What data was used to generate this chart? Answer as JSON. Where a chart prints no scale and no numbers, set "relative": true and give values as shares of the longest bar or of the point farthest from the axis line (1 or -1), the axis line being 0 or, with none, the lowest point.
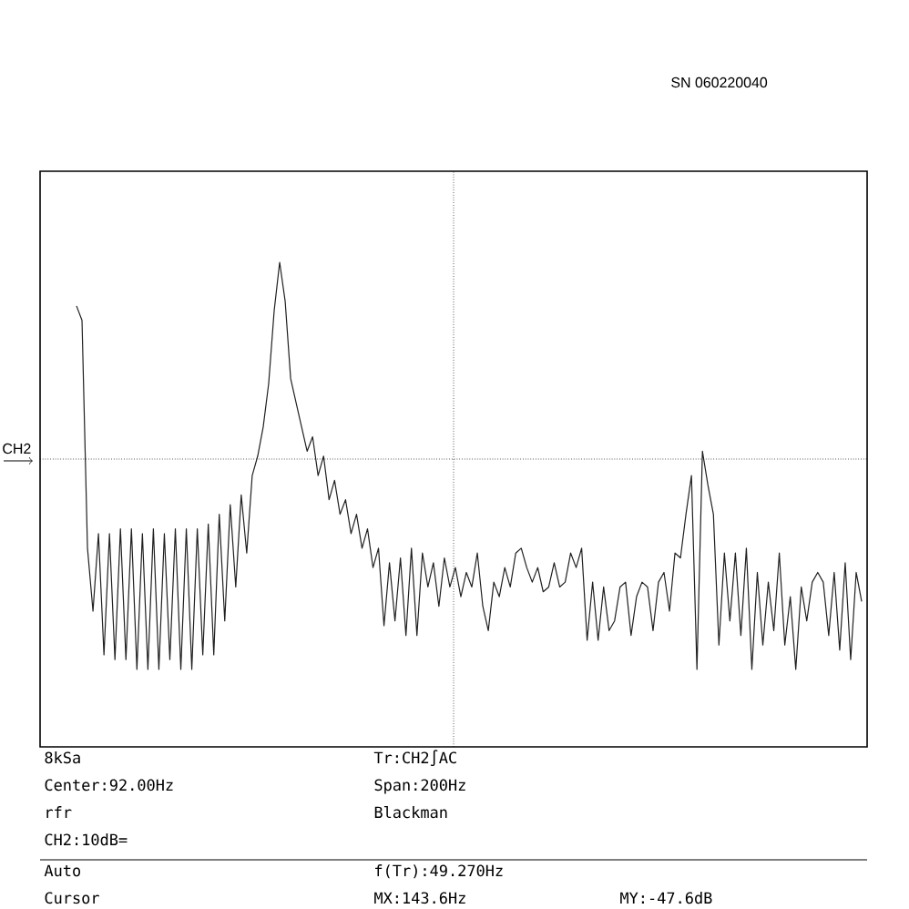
{
  "chart_data": {
    "type": "line",
    "relative": true,
    "grid": true,
    "color": "#202020",
    "categories": [
      null,
      null,
      null,
      null,
      null,
      null,
      null,
      null,
      null,
      null,
      null,
      null,
      null,
      null,
      null,
      null,
      null,
      null,
      null,
      null,
      null,
      null,
      null,
      null,
      null,
      null,
      null,
      null,
      null,
      null,
      null,
      null,
      null,
      null,
      null,
      null,
      null,
      null,
      null,
      null,
      null,
      null,
      null,
      null,
      null,
      null,
      null,
      null,
      null,
      null,
      null,
      null,
      null,
      null,
      null,
      null,
      null,
      null,
      null,
      null,
      null,
      null,
      null,
      null,
      null,
      null,
      null,
      null,
      null,
      null,
      null,
      null,
      null,
      null,
      null,
      null,
      null,
      null,
      null,
      null,
      null,
      null,
      null,
      null,
      null,
      null,
      null,
      null,
      null,
      null,
      null,
      null,
      null,
      null,
      null,
      null,
      null,
      null,
      null,
      null,
      null,
      null,
      null,
      null,
      null,
      null,
      null,
      null,
      null,
      null,
      null,
      null,
      null,
      null,
      null,
      null,
      null,
      null,
      null,
      null,
      null,
      null,
      null,
      null,
      null,
      null,
      null,
      null,
      null,
      null,
      null,
      null,
      null,
      null,
      null,
      null,
      null,
      null,
      null,
      null,
      null,
      null,
      null,
      null
    ],
    "values": [
      0.91,
      0.88,
      0.41,
      0.28,
      0.44,
      0.19,
      0.44,
      0.18,
      0.45,
      0.18,
      0.45,
      0.16,
      0.44,
      0.16,
      0.45,
      0.16,
      0.44,
      0.18,
      0.45,
      0.16,
      0.45,
      0.16,
      0.45,
      0.19,
      0.46,
      0.19,
      0.48,
      0.26,
      0.5,
      0.33,
      0.52,
      0.4,
      0.56,
      0.6,
      0.66,
      0.75,
      0.9,
      1.0,
      0.92,
      0.76,
      0.71,
      0.66,
      0.61,
      0.64,
      0.56,
      0.6,
      0.51,
      0.55,
      0.48,
      0.51,
      0.44,
      0.48,
      0.41,
      0.45,
      0.37,
      0.41,
      0.25,
      0.38,
      0.26,
      0.39,
      0.23,
      0.41,
      0.23,
      0.4,
      0.33,
      0.38,
      0.29,
      0.39,
      0.33,
      0.37,
      0.31,
      0.36,
      0.33,
      0.4,
      0.29,
      0.24,
      0.34,
      0.31,
      0.37,
      0.33,
      0.4,
      0.41,
      0.37,
      0.34,
      0.37,
      0.32,
      0.33,
      0.38,
      0.33,
      0.34,
      0.4,
      0.37,
      0.41,
      0.22,
      0.34,
      0.22,
      0.33,
      0.24,
      0.26,
      0.33,
      0.34,
      0.23,
      0.31,
      0.34,
      0.33,
      0.24,
      0.34,
      0.36,
      0.28,
      0.4,
      0.39,
      0.48,
      0.56,
      0.16,
      0.61,
      0.54,
      0.48,
      0.21,
      0.4,
      0.26,
      0.4,
      0.23,
      0.41,
      0.16,
      0.36,
      0.21,
      0.34,
      0.24,
      0.4,
      0.21,
      0.31,
      0.16,
      0.33,
      0.26,
      0.34,
      0.36,
      0.34,
      0.23,
      0.36,
      0.2,
      0.38,
      0.18,
      0.36,
      0.3
    ],
    "annotations": [
      "8kSa",
      "Center:92.00Hz",
      "rfr",
      "CH2:10dB=",
      "Tr:CH2∫AC",
      "Span:200Hz",
      "Blackman",
      "Auto",
      "Cursor",
      "f(Tr):49.270Hz",
      "MX:143.6Hz",
      "MY:-47.6dB",
      "CH2",
      "SN 060220040"
    ]
  }
}
